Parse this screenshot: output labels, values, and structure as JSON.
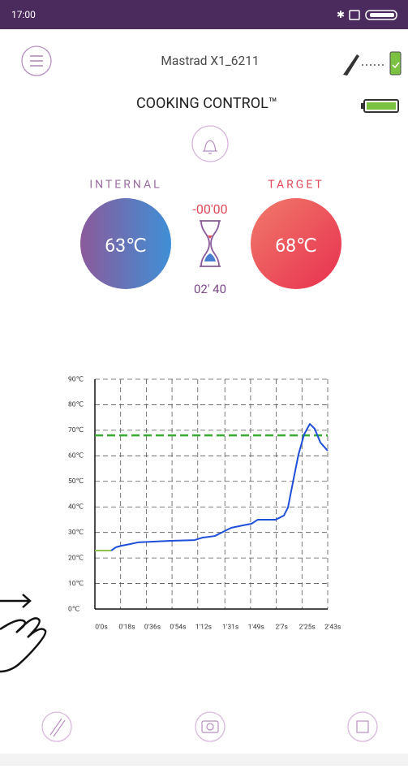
{
  "status_bar": {
    "time": "17:00"
  },
  "header": {
    "title": "Mastrad X1_6211"
  },
  "mode": "COOKING CONTROL™",
  "internal": {
    "label": "INTERNAL",
    "value": "63℃"
  },
  "target": {
    "label": "TARGET",
    "value": "68℃"
  },
  "timer": {
    "remaining": "-00'00",
    "elapsed": "02' 40"
  },
  "chart_data": {
    "type": "line",
    "xlim": [
      0,
      163
    ],
    "ylim": [
      0,
      90
    ],
    "xticks": [
      {
        "value": 0,
        "label": "0'0s"
      },
      {
        "value": 18,
        "label": "0'18s"
      },
      {
        "value": 36,
        "label": "0'36s"
      },
      {
        "value": 54,
        "label": "0'54s"
      },
      {
        "value": 72,
        "label": "1'12s"
      },
      {
        "value": 91,
        "label": "1'31s"
      },
      {
        "value": 109,
        "label": "1'49s"
      },
      {
        "value": 127,
        "label": "2'7s"
      },
      {
        "value": 145,
        "label": "2'25s"
      },
      {
        "value": 163,
        "label": "2'43s"
      }
    ],
    "yticks": [
      {
        "value": 0,
        "label": "0℃"
      },
      {
        "value": 10,
        "label": "10℃"
      },
      {
        "value": 20,
        "label": "20℃"
      },
      {
        "value": 30,
        "label": "30℃"
      },
      {
        "value": 40,
        "label": "40℃"
      },
      {
        "value": 50,
        "label": "50℃"
      },
      {
        "value": 60,
        "label": "60℃"
      },
      {
        "value": 70,
        "label": "70℃"
      },
      {
        "value": 80,
        "label": "80℃"
      },
      {
        "value": 90,
        "label": "90℃"
      }
    ],
    "grid": true,
    "series": [
      {
        "color": "#8bc34a",
        "x": [
          0,
          11.4
        ],
        "values": [
          22.9,
          22.9
        ]
      },
      {
        "color": "#1f4fd8",
        "x": [
          11.4,
          14.8,
          18.7,
          24.4,
          30.1,
          52.8,
          69.8,
          75.5,
          84.0,
          89.7,
          95.4,
          103.9,
          109.6,
          114.1,
          126.6,
          132.3,
          135.2,
          139.1,
          142.5,
          146.5,
          150.5,
          153.9,
          157.9,
          163
        ],
        "values": [
          22.9,
          24.2,
          24.8,
          25.4,
          26.1,
          26.7,
          27.0,
          28.0,
          28.6,
          30.2,
          31.8,
          32.8,
          33.4,
          35.0,
          35.0,
          36.6,
          39.8,
          50.9,
          60.4,
          68.4,
          72.5,
          70.6,
          65.2,
          62.0
        ]
      }
    ],
    "target_line": {
      "value": 68,
      "color": "#3aaa35"
    }
  }
}
